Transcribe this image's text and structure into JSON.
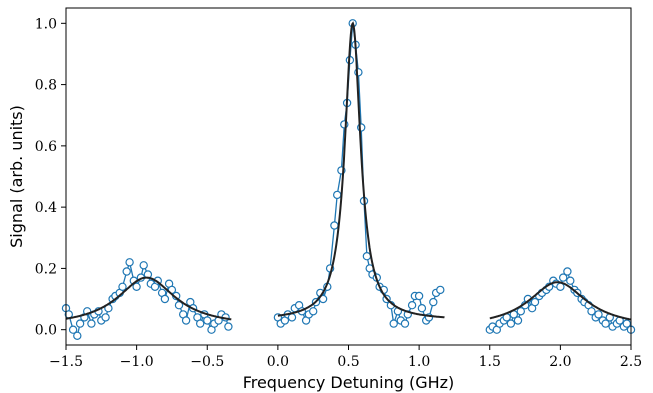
{
  "chart_data": {
    "type": "scatter",
    "title": "",
    "xlabel": "Frequency Detuning (GHz)",
    "ylabel": "Signal (arb. units)",
    "xlim": [
      -1.5,
      2.5
    ],
    "ylim": [
      -0.05,
      1.05
    ],
    "xticks": [
      -1.5,
      -1.0,
      -0.5,
      0.0,
      0.5,
      1.0,
      1.5,
      2.0,
      2.5
    ],
    "xtick_labels": [
      "−1.5",
      "−1.0",
      "−0.5",
      "0.0",
      "0.5",
      "1.0",
      "1.5",
      "2.0",
      "2.5"
    ],
    "yticks": [
      0.0,
      0.2,
      0.4,
      0.6,
      0.8,
      1.0
    ],
    "ytick_labels": [
      "0.0",
      "0.2",
      "0.4",
      "0.6",
      "0.8",
      "1.0"
    ],
    "grid": false,
    "colors": {
      "data": "#1f77b4",
      "fit": "#222222"
    },
    "series": [
      {
        "kind": "data",
        "marker": "open-circle",
        "x": [
          -1.5,
          -1.48,
          -1.45,
          -1.42,
          -1.4,
          -1.37,
          -1.35,
          -1.32,
          -1.3,
          -1.27,
          -1.25,
          -1.22,
          -1.2,
          -1.17,
          -1.15,
          -1.12,
          -1.1,
          -1.07,
          -1.05,
          -1.02,
          -1.0,
          -0.97,
          -0.95,
          -0.92,
          -0.9,
          -0.87,
          -0.85,
          -0.82,
          -0.8,
          -0.77,
          -0.75,
          -0.72,
          -0.7,
          -0.67,
          -0.65,
          -0.62,
          -0.6,
          -0.57,
          -0.55,
          -0.52,
          -0.5,
          -0.47,
          -0.45,
          -0.42,
          -0.4,
          -0.37,
          -0.35
        ],
        "y": [
          0.07,
          0.05,
          0.0,
          -0.02,
          0.02,
          0.04,
          0.06,
          0.02,
          0.05,
          0.06,
          0.03,
          0.04,
          0.07,
          0.1,
          0.11,
          0.12,
          0.14,
          0.19,
          0.22,
          0.16,
          0.14,
          0.17,
          0.21,
          0.18,
          0.15,
          0.14,
          0.16,
          0.12,
          0.1,
          0.15,
          0.13,
          0.11,
          0.08,
          0.05,
          0.03,
          0.09,
          0.07,
          0.04,
          0.02,
          0.05,
          0.03,
          0.0,
          0.02,
          0.03,
          0.05,
          0.04,
          0.01
        ]
      },
      {
        "kind": "data",
        "marker": "open-circle",
        "x": [
          0.0,
          0.02,
          0.05,
          0.07,
          0.1,
          0.12,
          0.15,
          0.17,
          0.2,
          0.22,
          0.25,
          0.27,
          0.3,
          0.32,
          0.35,
          0.37,
          0.4,
          0.42,
          0.45,
          0.47,
          0.49,
          0.51,
          0.53,
          0.55,
          0.57,
          0.59,
          0.61,
          0.63,
          0.65,
          0.67,
          0.7,
          0.72,
          0.75,
          0.77,
          0.8,
          0.82,
          0.85,
          0.87,
          0.9,
          0.92,
          0.95,
          0.97,
          1.0,
          1.02,
          1.05,
          1.07,
          1.1,
          1.12,
          1.15
        ],
        "y": [
          0.04,
          0.02,
          0.03,
          0.05,
          0.04,
          0.07,
          0.08,
          0.06,
          0.03,
          0.05,
          0.06,
          0.09,
          0.12,
          0.1,
          0.14,
          0.2,
          0.34,
          0.44,
          0.52,
          0.67,
          0.74,
          0.88,
          1.0,
          0.93,
          0.84,
          0.66,
          0.42,
          0.24,
          0.2,
          0.18,
          0.17,
          0.14,
          0.13,
          0.1,
          0.08,
          0.02,
          0.06,
          0.03,
          0.02,
          0.05,
          0.08,
          0.11,
          0.11,
          0.07,
          0.03,
          0.04,
          0.09,
          0.12,
          0.13
        ]
      },
      {
        "kind": "data",
        "marker": "open-circle",
        "x": [
          1.5,
          1.52,
          1.55,
          1.57,
          1.6,
          1.62,
          1.65,
          1.67,
          1.7,
          1.72,
          1.75,
          1.77,
          1.8,
          1.82,
          1.85,
          1.87,
          1.9,
          1.92,
          1.95,
          1.97,
          2.0,
          2.02,
          2.05,
          2.07,
          2.1,
          2.12,
          2.15,
          2.17,
          2.2,
          2.22,
          2.25,
          2.27,
          2.3,
          2.32,
          2.35,
          2.37,
          2.4,
          2.42,
          2.45,
          2.47,
          2.5
        ],
        "y": [
          0.0,
          0.01,
          0.0,
          0.02,
          0.03,
          0.04,
          0.02,
          0.05,
          0.03,
          0.06,
          0.08,
          0.1,
          0.07,
          0.09,
          0.11,
          0.12,
          0.13,
          0.14,
          0.16,
          0.15,
          0.14,
          0.17,
          0.19,
          0.16,
          0.13,
          0.12,
          0.1,
          0.09,
          0.08,
          0.06,
          0.04,
          0.05,
          0.03,
          0.02,
          0.04,
          0.01,
          0.02,
          0.03,
          0.01,
          0.02,
          0.0
        ]
      },
      {
        "kind": "fit",
        "segments": [
          {
            "center": -0.93,
            "amplitude": 0.16,
            "gamma": 0.25,
            "offset": 0.01,
            "xrange": [
              -1.5,
              -0.33
            ]
          },
          {
            "center": 0.53,
            "amplitude": 0.97,
            "gamma": 0.068,
            "offset": 0.03,
            "xrange": [
              0.0,
              1.18
            ]
          },
          {
            "center": 1.98,
            "amplitude": 0.15,
            "gamma": 0.25,
            "offset": 0.005,
            "xrange": [
              1.5,
              2.5
            ]
          }
        ]
      }
    ]
  }
}
